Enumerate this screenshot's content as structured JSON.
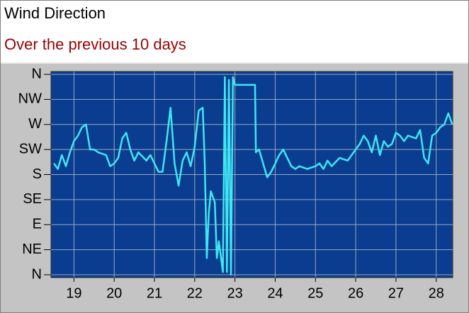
{
  "chart_data": {
    "type": "line",
    "title": "Wind Direction",
    "subtitle": "Over the previous 10 days",
    "color": "#3ee6f2",
    "grid": true,
    "xlim": [
      18.43,
      28.41
    ],
    "xticks": [
      19,
      20,
      21,
      22,
      23,
      24,
      25,
      26,
      27,
      28
    ],
    "ylim": [
      0,
      360
    ],
    "yticks": [
      {
        "value": 0,
        "label": "N"
      },
      {
        "value": 45,
        "label": "NE"
      },
      {
        "value": 90,
        "label": "E"
      },
      {
        "value": 135,
        "label": "SE"
      },
      {
        "value": 180,
        "label": "S"
      },
      {
        "value": 225,
        "label": "SW"
      },
      {
        "value": 270,
        "label": "W"
      },
      {
        "value": 315,
        "label": "NW"
      },
      {
        "value": 360,
        "label": "N"
      }
    ],
    "x": [
      18.5,
      18.6,
      18.7,
      18.8,
      18.9,
      19.0,
      19.1,
      19.2,
      19.3,
      19.4,
      19.5,
      19.6,
      19.8,
      19.9,
      20.0,
      20.1,
      20.2,
      20.3,
      20.4,
      20.5,
      20.6,
      20.8,
      20.9,
      21.0,
      21.1,
      21.2,
      21.3,
      21.4,
      21.5,
      21.6,
      21.7,
      21.8,
      21.9,
      22.0,
      22.1,
      22.2,
      22.25,
      22.3,
      22.35,
      22.4,
      22.5,
      22.55,
      22.6,
      22.7,
      22.75,
      22.8,
      22.85,
      22.9,
      22.95,
      23.0,
      23.2,
      23.5,
      23.52,
      23.6,
      23.7,
      23.8,
      23.9,
      24.0,
      24.1,
      24.2,
      24.3,
      24.4,
      24.5,
      24.6,
      24.8,
      25.0,
      25.1,
      25.2,
      25.3,
      25.4,
      25.6,
      25.8,
      25.9,
      26.0,
      26.1,
      26.2,
      26.3,
      26.4,
      26.5,
      26.6,
      26.7,
      26.8,
      26.9,
      27.0,
      27.1,
      27.2,
      27.3,
      27.5,
      27.6,
      27.7,
      27.8,
      27.9,
      28.0,
      28.1,
      28.2,
      28.3,
      28.4
    ],
    "values": [
      200,
      190,
      215,
      195,
      220,
      240,
      250,
      265,
      270,
      225,
      225,
      220,
      215,
      195,
      200,
      210,
      245,
      255,
      225,
      205,
      220,
      205,
      215,
      200,
      185,
      185,
      240,
      300,
      200,
      160,
      205,
      220,
      195,
      230,
      295,
      300,
      200,
      30,
      110,
      150,
      130,
      30,
      60,
      5,
      355,
      5,
      350,
      0,
      355,
      341,
      341,
      341,
      220,
      225,
      200,
      175,
      185,
      200,
      215,
      225,
      210,
      195,
      190,
      195,
      190,
      195,
      200,
      190,
      205,
      195,
      210,
      205,
      215,
      225,
      235,
      250,
      240,
      220,
      250,
      215,
      240,
      230,
      235,
      255,
      250,
      240,
      250,
      245,
      260,
      210,
      200,
      250,
      255,
      265,
      270,
      290,
      270
    ]
  }
}
